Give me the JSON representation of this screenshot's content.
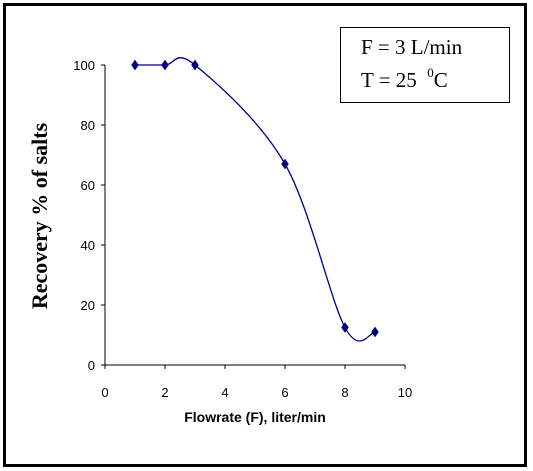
{
  "chart_data": {
    "type": "scatter",
    "title": "",
    "xlabel": "Flowrate (F), liter/min",
    "ylabel": "Recovery % of salts",
    "xlim": [
      0,
      10
    ],
    "ylim": [
      0,
      100
    ],
    "xticks": [
      0,
      2,
      4,
      6,
      8,
      10
    ],
    "yticks": [
      0,
      20,
      40,
      60,
      80,
      100
    ],
    "grid": false,
    "smooth_line": true,
    "series": [
      {
        "color": "#000080",
        "marker": "diamond",
        "x": [
          1,
          2,
          3,
          6,
          8,
          9
        ],
        "y": [
          100,
          100,
          100,
          67,
          12.5,
          11
        ]
      }
    ],
    "annotation": {
      "line1": "F = 3 L/min",
      "line2_prefix": "T = 25  ",
      "line2_sup": "0",
      "line2_suffix": "C"
    }
  }
}
